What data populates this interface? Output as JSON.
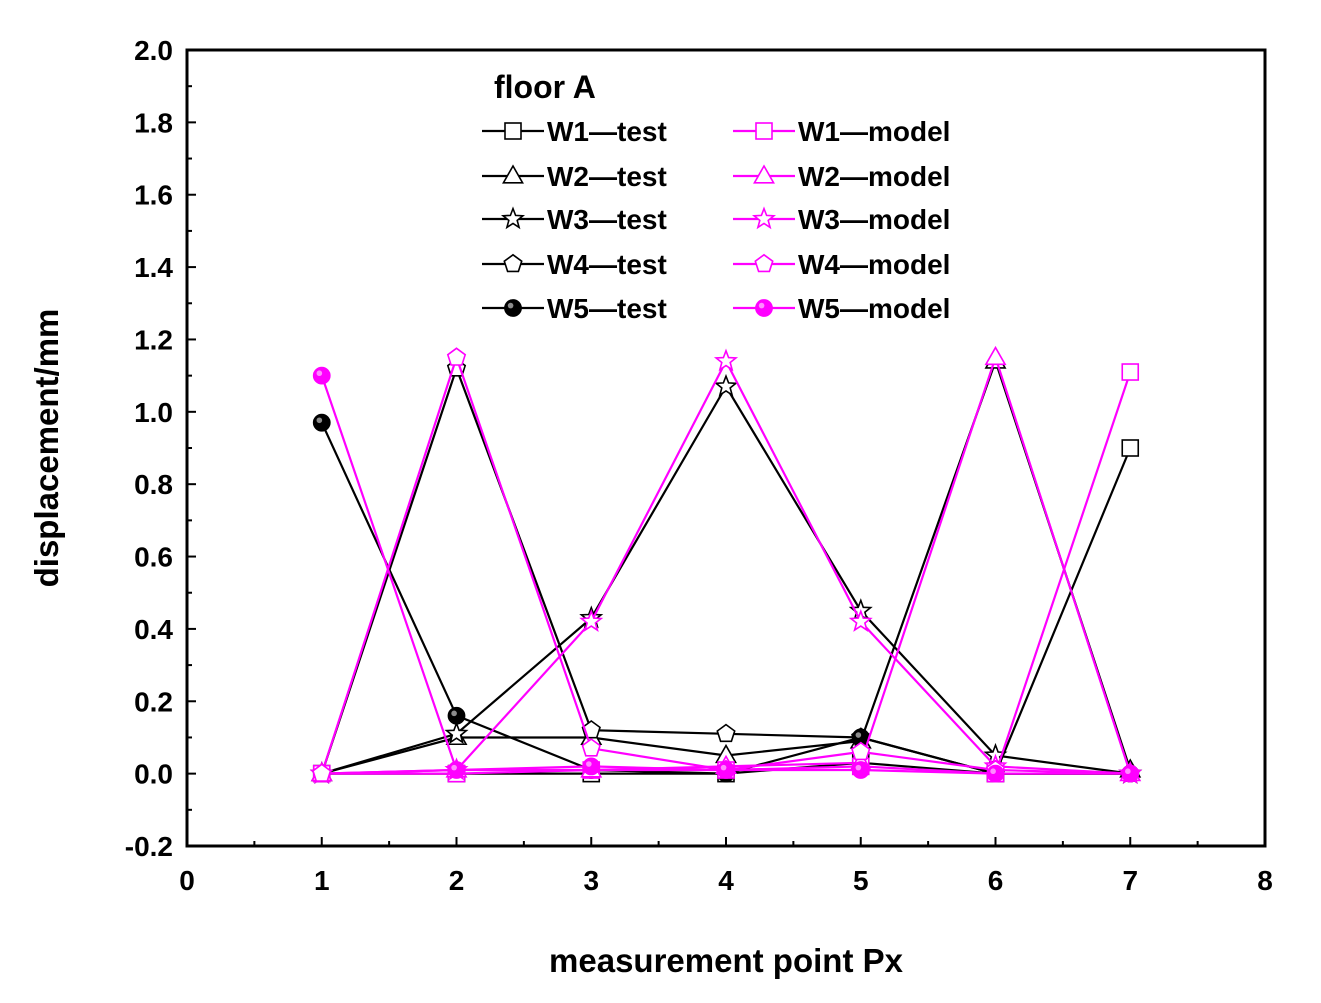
{
  "chart_data": {
    "type": "line",
    "title": "",
    "xlabel": "measurement point Px",
    "ylabel": "displacement/mm",
    "xlim": [
      0,
      8
    ],
    "ylim": [
      -0.2,
      2.0
    ],
    "xticks": [
      0,
      1,
      2,
      3,
      4,
      5,
      6,
      7,
      8
    ],
    "xtick_labels": [
      "0",
      "1",
      "2",
      "3",
      "4",
      "5",
      "6",
      "7",
      "8"
    ],
    "yticks": [
      -0.2,
      0.0,
      0.2,
      0.4,
      0.6,
      0.8,
      1.0,
      1.2,
      1.4,
      1.6,
      1.8,
      2.0
    ],
    "ytick_labels": [
      "-0.2",
      "0.0",
      "0.2",
      "0.4",
      "0.6",
      "0.8",
      "1.0",
      "1.2",
      "1.4",
      "1.6",
      "1.8",
      "2.0"
    ],
    "legend_title": "floor A",
    "legend_position": "top-center",
    "x": [
      1,
      2,
      3,
      4,
      5,
      6,
      7
    ],
    "colors": {
      "test": "#000000",
      "model": "#ff00ff"
    },
    "series": [
      {
        "name": "W1—test",
        "group": "test",
        "marker": "square",
        "values": [
          0.0,
          0.0,
          0.0,
          0.0,
          0.03,
          0.0,
          0.9
        ]
      },
      {
        "name": "W2—test",
        "group": "test",
        "marker": "triangle",
        "values": [
          0.0,
          0.1,
          0.1,
          0.05,
          0.09,
          1.14,
          0.01
        ]
      },
      {
        "name": "W3—test",
        "group": "test",
        "marker": "star",
        "values": [
          0.0,
          0.11,
          0.43,
          1.07,
          0.45,
          0.05,
          0.0
        ]
      },
      {
        "name": "W4—test",
        "group": "test",
        "marker": "pentagon",
        "values": [
          0.0,
          1.12,
          0.12,
          0.11,
          0.1,
          0.0,
          0.0
        ]
      },
      {
        "name": "W5—test",
        "group": "test",
        "marker": "dot",
        "values": [
          0.97,
          0.16,
          0.01,
          0.0,
          0.1,
          0.0,
          0.0
        ]
      },
      {
        "name": "W1—model",
        "group": "model",
        "marker": "square",
        "values": [
          0.0,
          0.0,
          0.01,
          0.01,
          0.02,
          0.0,
          1.11
        ]
      },
      {
        "name": "W2—model",
        "group": "model",
        "marker": "triangle",
        "values": [
          0.0,
          0.01,
          0.01,
          0.02,
          0.03,
          1.15,
          0.0
        ]
      },
      {
        "name": "W3—model",
        "group": "model",
        "marker": "star",
        "values": [
          0.0,
          0.01,
          0.42,
          1.14,
          0.42,
          0.02,
          0.0
        ]
      },
      {
        "name": "W4—model",
        "group": "model",
        "marker": "pentagon",
        "values": [
          0.0,
          1.15,
          0.07,
          0.01,
          0.06,
          0.01,
          0.0
        ]
      },
      {
        "name": "W5—model",
        "group": "model",
        "marker": "dot",
        "values": [
          1.1,
          0.01,
          0.02,
          0.01,
          0.01,
          0.0,
          0.0
        ]
      }
    ]
  }
}
